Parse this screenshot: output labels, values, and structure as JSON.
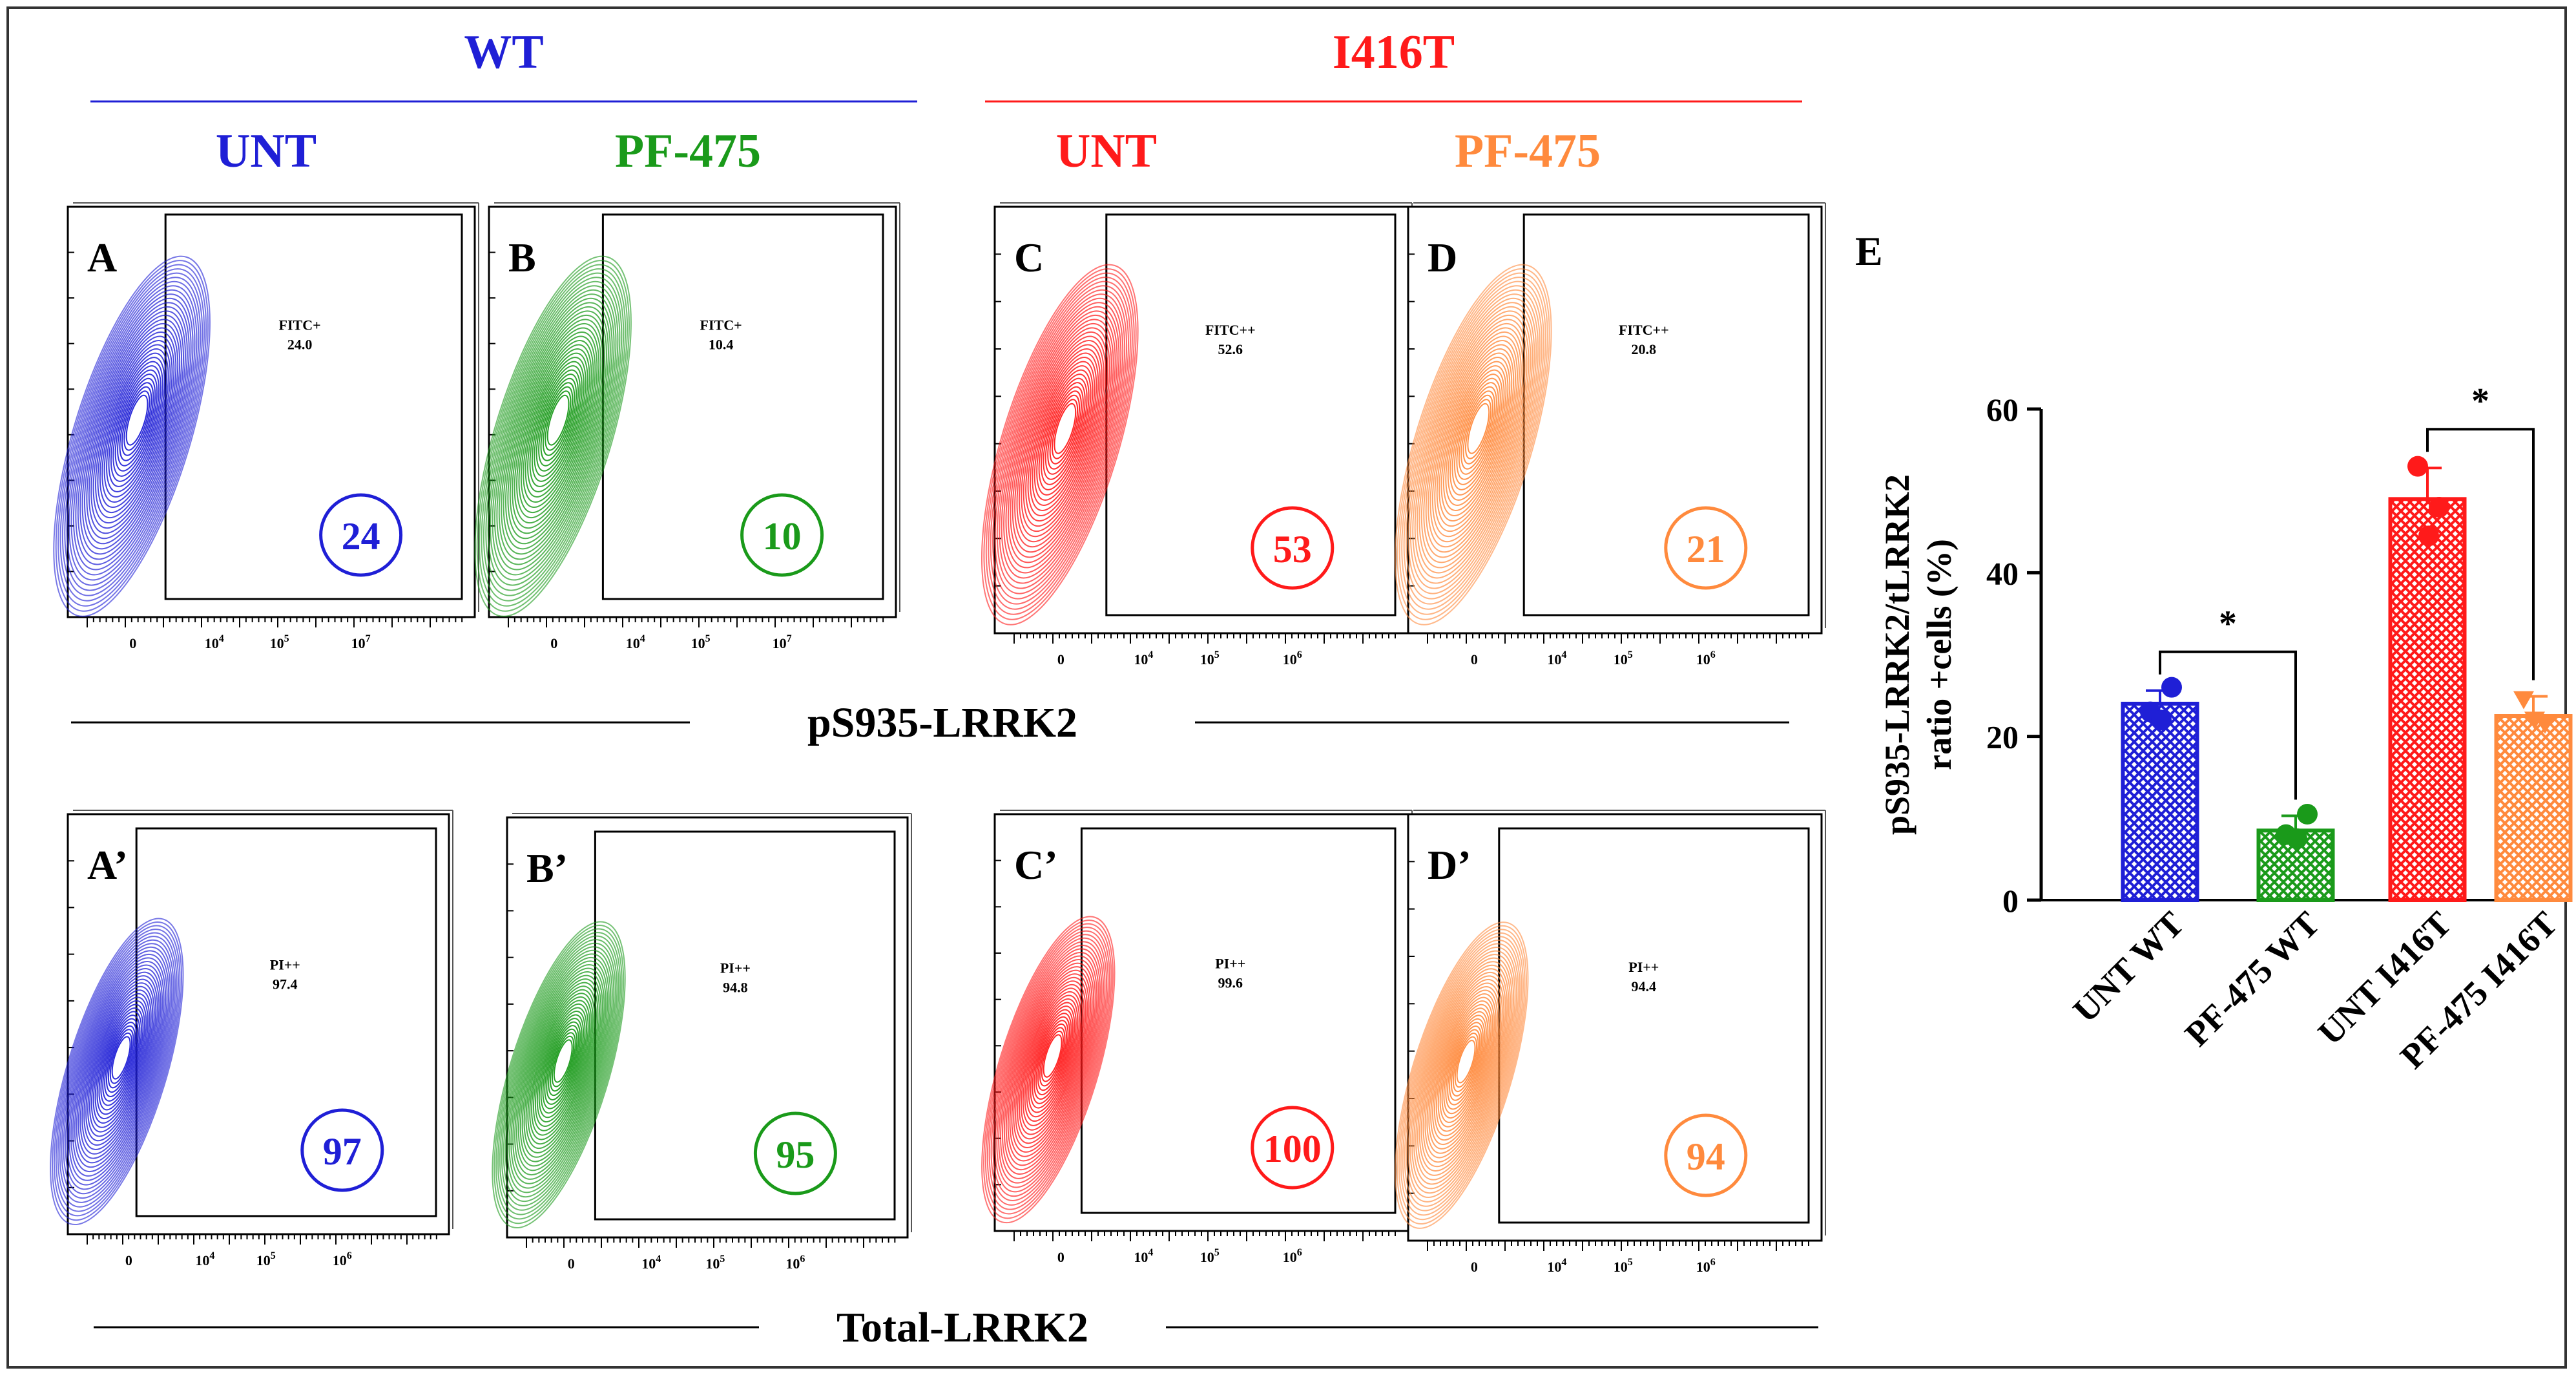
{
  "groups": [
    {
      "name": "WT",
      "color": "#1f1fd6"
    },
    {
      "name": "I416T",
      "color": "#ff1a1a"
    }
  ],
  "conditions": [
    {
      "label": "UNT",
      "color": "#1f1fd6"
    },
    {
      "label": "PF-475",
      "color": "#1a9a1a"
    },
    {
      "label": "UNT",
      "color": "#ff1a1a"
    },
    {
      "label": "PF-475",
      "color": "#ff8a3d"
    }
  ],
  "row_titles": {
    "top": "pS935-LRRK2",
    "bottom": "Total-LRRK2"
  },
  "palette": {
    "wt": "#1f1fd6",
    "pf_wt": "#1a9a1a",
    "unt_i416t": "#ff1a1a",
    "pf_i416t": "#ff8a3d"
  },
  "panels_top": [
    {
      "letter": "A",
      "gate": "FITC+",
      "gate_value": "24.0",
      "circle": "24",
      "color": "#1f1fd6",
      "ticks": [
        "0",
        "10",
        "4",
        "10",
        "5",
        "10",
        "7"
      ]
    },
    {
      "letter": "B",
      "gate": "FITC+",
      "gate_value": "10.4",
      "circle": "10",
      "color": "#1a9a1a",
      "ticks": [
        "0",
        "10",
        "4",
        "10",
        "5",
        "10",
        "7"
      ]
    },
    {
      "letter": "C",
      "gate": "FITC++",
      "gate_value": "52.6",
      "circle": "53",
      "color": "#ff1a1a",
      "ticks": [
        "0",
        "10",
        "4",
        "10",
        "5",
        "10",
        "6"
      ]
    },
    {
      "letter": "D",
      "gate": "FITC++",
      "gate_value": "20.8",
      "circle": "21",
      "color": "#ff8a3d",
      "ticks": [
        "0",
        "10",
        "4",
        "10",
        "5",
        "10",
        "6"
      ]
    }
  ],
  "panels_bottom": [
    {
      "letter": "A’",
      "gate": "PI++",
      "gate_value": "97.4",
      "circle": "97",
      "color": "#1f1fd6",
      "ticks": [
        "0",
        "10",
        "4",
        "10",
        "5",
        "10",
        "6"
      ]
    },
    {
      "letter": "B’",
      "gate": "PI++",
      "gate_value": "94.8",
      "circle": "95",
      "color": "#1a9a1a",
      "ticks": [
        "0",
        "10",
        "4",
        "10",
        "5",
        "10",
        "6"
      ]
    },
    {
      "letter": "C’",
      "gate": "PI++",
      "gate_value": "99.6",
      "circle": "100",
      "color": "#ff1a1a",
      "ticks": [
        "0",
        "10",
        "4",
        "10",
        "5",
        "10",
        "6"
      ]
    },
    {
      "letter": "D’",
      "gate": "PI++",
      "gate_value": "94.4",
      "circle": "94",
      "color": "#ff8a3d",
      "ticks": [
        "0",
        "10",
        "4",
        "10",
        "5",
        "10",
        "6"
      ]
    }
  ],
  "chart_data": {
    "type": "bar",
    "panel_letter": "E",
    "ylabel_line1": "pS935-LRRK2/tLRRK2",
    "ylabel_line2": "ratio +cells (%)",
    "categories": [
      "UNT WT",
      "PF-475 WT",
      "UNT I416T",
      "PF-475 I416T"
    ],
    "values": [
      24,
      8.5,
      49,
      22.5
    ],
    "errors": [
      1.6,
      1.8,
      3.8,
      2.4
    ],
    "points": [
      [
        23,
        26,
        22
      ],
      [
        8,
        10.5,
        7.5
      ],
      [
        53,
        48,
        44.5
      ],
      [
        24.5,
        21.5,
        22
      ]
    ],
    "colors": [
      "#1f1fd6",
      "#1a9a1a",
      "#ff1a1a",
      "#ff8a3d"
    ],
    "ylim": [
      0,
      60
    ],
    "yticks": [
      "0",
      "20",
      "40",
      "60"
    ],
    "significance": [
      {
        "from": 0,
        "to": 1,
        "label": "*"
      },
      {
        "from": 2,
        "to": 3,
        "label": "*"
      }
    ]
  }
}
